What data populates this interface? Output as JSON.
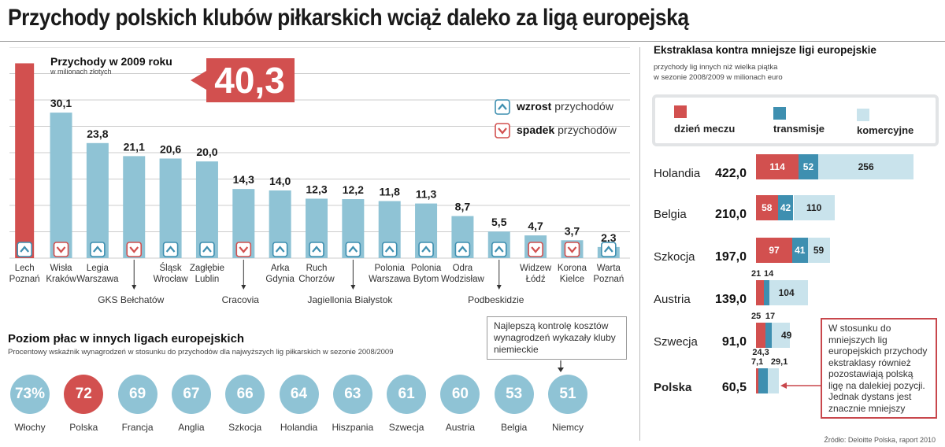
{
  "title": "Przychody polskich klubów piłkarskich wciąż daleko za ligą europejską",
  "colors": {
    "main_bar": "#8fc3d5",
    "highlight_bar": "#d2504f",
    "red": "#d2504f",
    "blue": "#3e8fb0",
    "light": "#c9e3ec",
    "circle": "#8fc3d5",
    "grid": "#cccccc"
  },
  "chart_data": [
    {
      "type": "bar",
      "title": "Przychody w 2009 roku",
      "subtitle": "w milionach złotych",
      "highlight_value": "40,3",
      "unit": "mln zł",
      "categories": [
        "Lech Poznań",
        "Wisła Kraków",
        "Legia Warszawa",
        "GKS Bełchatów",
        "Śląsk Wrocław",
        "Zagłębie Lublin",
        "Cracovia",
        "Arka Gdynia",
        "Ruch Chorzów",
        "Jagiellonia Białystok",
        "Polonia Warszawa",
        "Polonia Bytom",
        "Odra Wodzisław",
        "Podbeskidzie",
        "Widzew Łódź",
        "Korona Kielce",
        "Warta Poznań"
      ],
      "tick_lines": [
        [
          "Lech",
          "Poznań"
        ],
        [
          "Wisła",
          "Kraków"
        ],
        [
          "Legia",
          "Warszawa"
        ],
        [
          "",
          ""
        ],
        [
          "Śląsk",
          "Wrocław"
        ],
        [
          "Zagłębie",
          "Lublin"
        ],
        [
          "",
          ""
        ],
        [
          "Arka",
          "Gdynia"
        ],
        [
          "Ruch",
          "Chorzów"
        ],
        [
          "",
          ""
        ],
        [
          "Polonia",
          "Warszawa"
        ],
        [
          "Polonia",
          "Bytom"
        ],
        [
          "Odra",
          "Wodzisław"
        ],
        [
          "",
          ""
        ],
        [
          "Widzew",
          "Łódź"
        ],
        [
          "Korona",
          "Kielce"
        ],
        [
          "Warta",
          "Poznań"
        ]
      ],
      "below_labels": [
        {
          "index": 3,
          "text": "GKS Bełchatów"
        },
        {
          "index": 6,
          "text": "Cracovia"
        },
        {
          "index": 9,
          "text": "Jagiellonia Białystok"
        },
        {
          "index": 13,
          "text": "Podbeskidzie"
        }
      ],
      "values": [
        40.3,
        30.1,
        23.8,
        21.1,
        20.6,
        20.0,
        14.3,
        14.0,
        12.3,
        12.2,
        11.8,
        11.3,
        8.7,
        5.5,
        4.7,
        3.7,
        2.3
      ],
      "value_labels": [
        "",
        "30,1",
        "23,8",
        "21,1",
        "20,6",
        "20,0",
        "14,3",
        "14,0",
        "12,3",
        "12,2",
        "11,8",
        "11,3",
        "8,7",
        "5,5",
        "4,7",
        "3,7",
        "2,3"
      ],
      "trend": [
        "up",
        "down",
        "up",
        "down",
        "up",
        "up",
        "down",
        "up",
        "up",
        "up",
        "up",
        "up",
        "up",
        "up",
        "down",
        "down",
        "up"
      ],
      "ylim": [
        0,
        42
      ],
      "legend": [
        {
          "key": "up",
          "bold": "wzrost",
          "rest": " przychodów"
        },
        {
          "key": "down",
          "bold": "spadek",
          "rest": " przychodów"
        }
      ]
    },
    {
      "type": "stacked-bar",
      "title": "Ekstraklasa kontra mniejsze ligi europejskie",
      "subtitle_1": "przychody lig innych niż wielka piątka",
      "subtitle_2": "w sezonie 2008/2009 w milionach euro",
      "series_names": [
        "dzień meczu",
        "transmisje",
        "komercyjne"
      ],
      "rows": [
        {
          "country": "Holandia",
          "total": "422,0",
          "values": [
            114,
            52,
            256
          ],
          "labels": [
            "114",
            "52",
            "256"
          ]
        },
        {
          "country": "Belgia",
          "total": "210,0",
          "values": [
            58,
            42,
            110
          ],
          "labels": [
            "58",
            "42",
            "110"
          ]
        },
        {
          "country": "Szkocja",
          "total": "197,0",
          "values": [
            97,
            41,
            59
          ],
          "labels": [
            "97",
            "41",
            "59"
          ]
        },
        {
          "country": "Austria",
          "total": "139,0",
          "values": [
            21,
            14,
            104
          ],
          "labels": [
            "21",
            "14",
            "104"
          ]
        },
        {
          "country": "Szwecja",
          "total": "91,0",
          "values": [
            25,
            17,
            49
          ],
          "labels": [
            "25",
            "17",
            "49"
          ]
        },
        {
          "country": "Polska",
          "total": "60,5",
          "values": [
            7.1,
            24.3,
            29.1
          ],
          "labels": [
            "7,1",
            "24,3",
            "29,1"
          ]
        }
      ],
      "note": "W stosunku do mniejszych lig europejskich przychody ekstraklasy również pozostawiają polską ligę na dalekiej pozycji. Jednak dystans jest znacznie mniejszy"
    },
    {
      "type": "bubbles",
      "title": "Poziom płac w innych ligach europejskich",
      "subtitle": "Procentowy wskaźnik wynagrodzeń w stosunku do przychodów dla najwyższych lig piłkarskich w sezonie 2008/2009",
      "categories": [
        "Włochy",
        "Polska",
        "Francja",
        "Anglia",
        "Szkocja",
        "Holandia",
        "Hiszpania",
        "Szwecja",
        "Austria",
        "Belgia",
        "Niemcy"
      ],
      "values": [
        73,
        72,
        69,
        67,
        66,
        64,
        63,
        61,
        60,
        53,
        51
      ],
      "value_labels": [
        "73%",
        "72",
        "69",
        "67",
        "66",
        "64",
        "63",
        "61",
        "60",
        "53",
        "51"
      ],
      "highlight_index": 1,
      "callout": "Najlepszą kontrolę kosztów wynagrodzeń wykazały kluby niemieckie"
    }
  ],
  "source": "Źródło: Deloitte Polska, raport 2010"
}
